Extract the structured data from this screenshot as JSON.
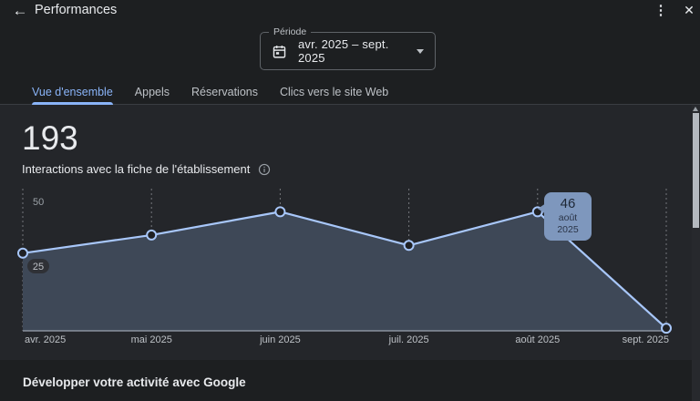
{
  "header": {
    "title": "Performances",
    "back_icon": "←",
    "more_icon": "⋮",
    "close_icon": "✕"
  },
  "period_selector": {
    "label": "Période",
    "value": "avr. 2025 – sept. 2025"
  },
  "tabs": [
    {
      "label": "Vue d'ensemble",
      "active": true
    },
    {
      "label": "Appels",
      "active": false
    },
    {
      "label": "Réservations",
      "active": false
    },
    {
      "label": "Clics vers le site Web",
      "active": false
    }
  ],
  "metric": {
    "value": "193",
    "label": "Interactions avec la fiche de l'établissement"
  },
  "chart_data": {
    "type": "area",
    "categories": [
      "avr. 2025",
      "mai 2025",
      "juin 2025",
      "juil. 2025",
      "août 2025",
      "sept. 2025"
    ],
    "values": [
      30,
      37,
      46,
      33,
      46,
      1
    ],
    "total": 193,
    "ylim": [
      0,
      50
    ],
    "yticks": [
      {
        "value": 50,
        "pill": false
      },
      {
        "value": 25,
        "pill": true
      }
    ],
    "grid": "vertical-dotted",
    "legend_position": "none",
    "tooltip": {
      "value": "46",
      "label": "août 2025",
      "point_index": 4
    },
    "line_color": "#a8c7fa",
    "area_color": "#3e4857",
    "point_fill": "#202124",
    "axis_label_color": "#bdc1c6",
    "ytick_color": "#9aa0a6",
    "baseline_color": "#9aa4b0"
  },
  "footer": {
    "title": "Développer votre activité avec Google"
  }
}
